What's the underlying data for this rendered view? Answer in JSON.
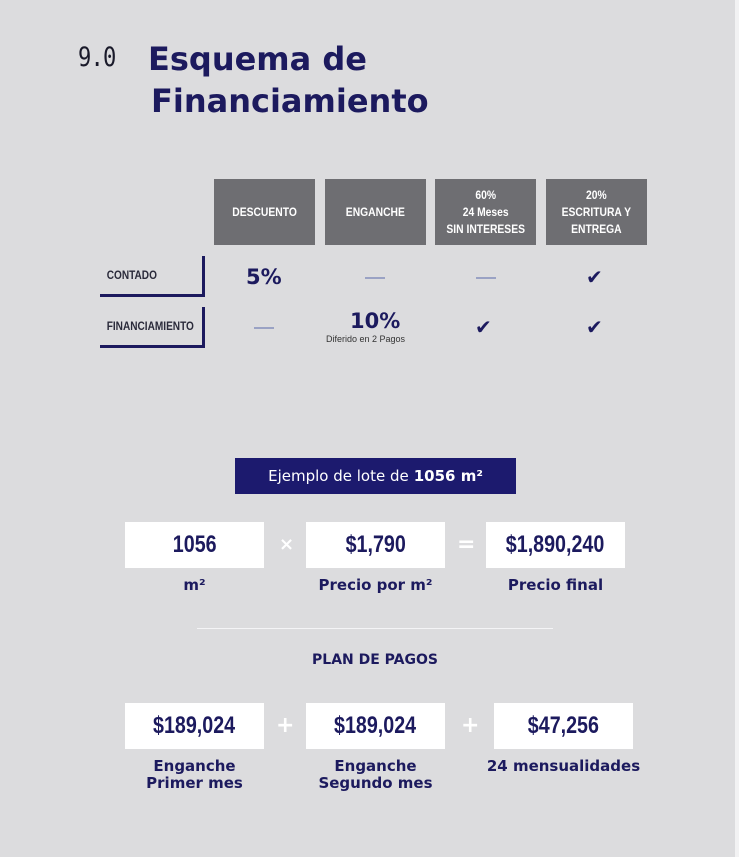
{
  "section": {
    "number": "9.0",
    "title_line1": "Esquema de",
    "title_line2": "Financiamiento"
  },
  "table": {
    "headers": [
      "DESCUENTO",
      "ENGANCHE",
      "60%|24 Meses|SIN INTERESES",
      "20%|ESCRITURA Y|ENTREGA"
    ],
    "rows": [
      {
        "label": "CONTADO",
        "descuento": "5%"
      },
      {
        "label": "FINANCIAMIENTO",
        "enganche": "10%",
        "enganche_note": "Diferido en 2 Pagos"
      }
    ],
    "check_glyph": "✔",
    "dash_color": "#9aa2c4"
  },
  "example": {
    "prefix": "Ejemplo de lote de",
    "value": "1056 m²"
  },
  "calc": {
    "area": "1056",
    "area_caption": "m²",
    "multiply": "×",
    "price": "$1,790",
    "price_caption": "Precio por m²",
    "equals": "=",
    "total": "$1,890,240",
    "total_caption": "Precio final"
  },
  "plan": {
    "title": "PLAN DE PAGOS",
    "plus": "+",
    "items": [
      {
        "amount": "$189,024",
        "caption_l1": "Enganche",
        "caption_l2": "Primer mes"
      },
      {
        "amount": "$189,024",
        "caption_l1": "Enganche",
        "caption_l2": "Segundo mes"
      },
      {
        "amount": "$47,256",
        "caption_l1": "24 mensualidades",
        "caption_l2": ""
      }
    ]
  },
  "colors": {
    "navy": "#1c1a5e",
    "header_gray": "#6e6e72",
    "background": "#dcdcde"
  }
}
